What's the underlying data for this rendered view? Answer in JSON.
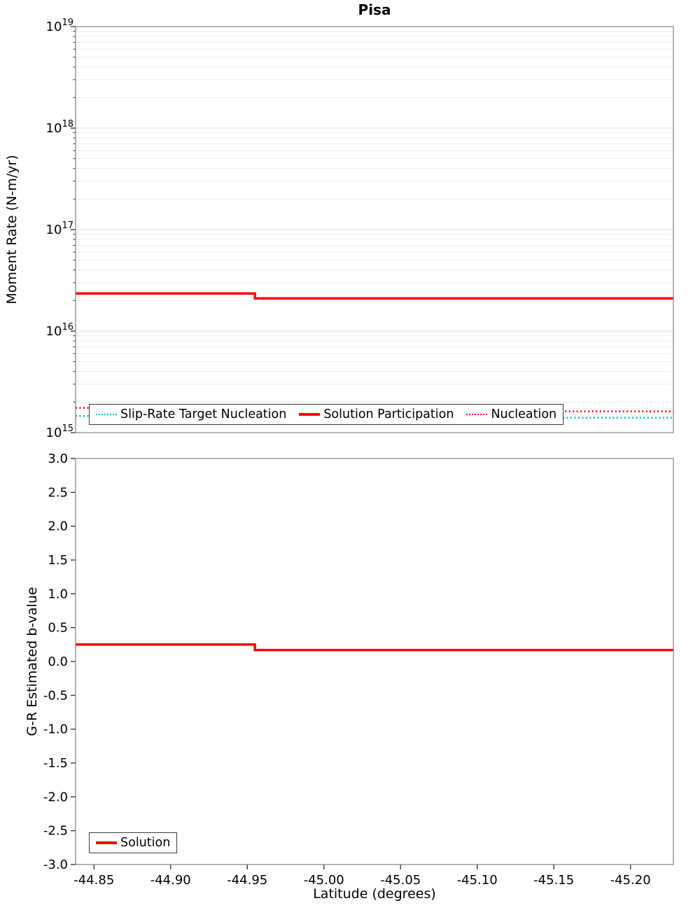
{
  "title": "Pisa",
  "xlabel": "Latitude (degrees)",
  "colors": {
    "red": "#ff0000",
    "cyan": "#00bfbf",
    "grid_major": "#dcdcdc",
    "grid_minor": "#ececec",
    "frame": "#808080",
    "tick": "#2a2a2a"
  },
  "chart_data": [
    {
      "type": "line",
      "title": "Pisa",
      "ylabel": "Moment Rate (N-m/yr)",
      "yscale": "log",
      "ylim": [
        1000000000000000.0,
        1e+19
      ],
      "xlim": [
        -44.838,
        -45.228
      ],
      "x_ticks": [
        -44.85,
        -44.9,
        -44.95,
        -45.0,
        -45.05,
        -45.1,
        -45.15,
        -45.2
      ],
      "grid": true,
      "legend_position": "bottom-inside",
      "series": [
        {
          "name": "Slip-Rate Target Nucleation",
          "color": "cyan",
          "style": "dotted",
          "width": 2.5,
          "x": [
            -44.838,
            -44.955,
            -44.955,
            -45.228
          ],
          "y": [
            1460000000000000.0,
            1460000000000000.0,
            1400000000000000.0,
            1400000000000000.0
          ]
        },
        {
          "name": "Solution Participation",
          "color": "red",
          "style": "solid",
          "width": 3.5,
          "x": [
            -44.838,
            -44.955,
            -44.955,
            -45.228
          ],
          "y": [
            2.35e+16,
            2.35e+16,
            2.1e+16,
            2.1e+16
          ]
        },
        {
          "name": "Nucleation",
          "color": "red",
          "style": "dotted",
          "width": 2.5,
          "x": [
            -44.838,
            -44.955,
            -44.955,
            -45.228
          ],
          "y": [
            1750000000000000.0,
            1750000000000000.0,
            1620000000000000.0,
            1620000000000000.0
          ]
        }
      ]
    },
    {
      "type": "line",
      "ylabel": "G-R Estimated b-value",
      "yscale": "linear",
      "ylim": [
        -3.0,
        3.0
      ],
      "ytick_step": 0.5,
      "xlim": [
        -44.838,
        -45.228
      ],
      "grid": false,
      "legend_position": "bottom-left-inside",
      "series": [
        {
          "name": "Solution",
          "color": "red",
          "style": "solid",
          "width": 3.5,
          "x": [
            -44.838,
            -44.955,
            -44.955,
            -45.228
          ],
          "y": [
            0.25,
            0.25,
            0.17,
            0.17
          ]
        }
      ]
    }
  ],
  "legends": {
    "top": {
      "items": [
        {
          "label": "Slip-Rate Target Nucleation",
          "swatch": "cyan-dotted"
        },
        {
          "label": "Solution Participation",
          "swatch": "red-solid"
        },
        {
          "label": "Nucleation",
          "swatch": "red-dotted"
        }
      ]
    },
    "bottom": {
      "items": [
        {
          "label": "Solution",
          "swatch": "red-solid"
        }
      ]
    }
  }
}
